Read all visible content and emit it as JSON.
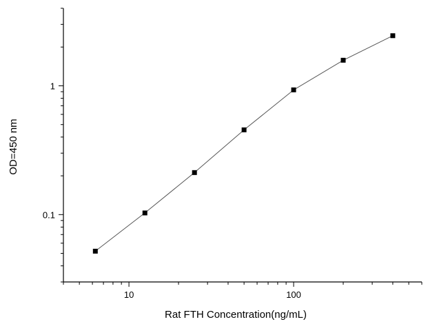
{
  "chart_data": {
    "type": "scatter",
    "title": "",
    "xlabel": "Rat FTH Concentration(ng/mL)",
    "ylabel": "OD=450 nm",
    "xscale": "log",
    "yscale": "log",
    "xlim": [
      4,
      600
    ],
    "ylim": [
      0.03,
      4
    ],
    "grid": false,
    "legend": "none",
    "x_tick_labels": [
      "10",
      "100"
    ],
    "y_tick_labels": [
      "0.1",
      "1"
    ],
    "marker_color": "#000000",
    "line_color": "#555555",
    "series": [
      {
        "x": [
          6.25,
          12.5,
          25,
          50,
          100,
          200,
          400
        ],
        "y": [
          0.052,
          0.103,
          0.212,
          0.455,
          0.93,
          1.58,
          2.45
        ]
      }
    ]
  }
}
